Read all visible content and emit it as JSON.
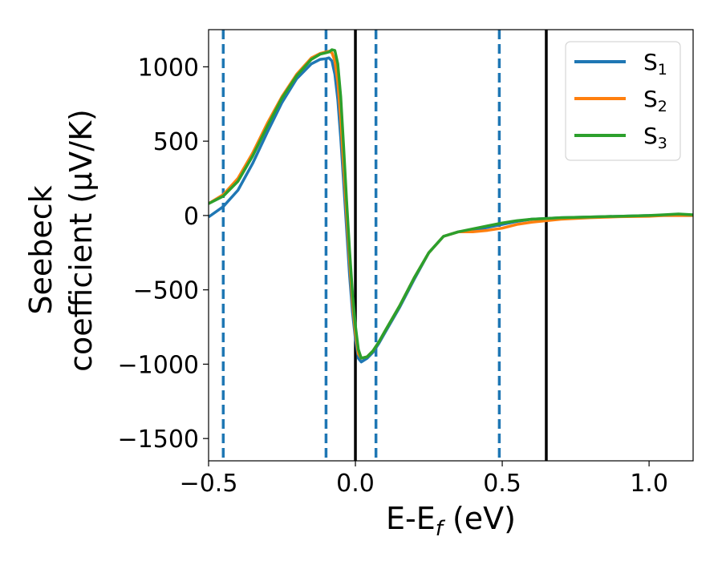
{
  "chart_data": {
    "type": "line",
    "xlabel_main": "E-E",
    "xlabel_sub": "f",
    "xlabel_unit": " (eV)",
    "ylabel_line1": "Seebeck",
    "ylabel_line2": "coefficient  (μV/K)",
    "xlim": [
      -0.5,
      1.15
    ],
    "ylim": [
      -1650,
      1250
    ],
    "xticks": [
      -0.5,
      0.0,
      0.5,
      1.0
    ],
    "xtick_labels": [
      "−0.5",
      "0.0",
      "0.5",
      "1.0"
    ],
    "yticks": [
      -1500,
      -1000,
      -500,
      0,
      500,
      1000
    ],
    "ytick_labels": [
      "−1500",
      "−1000",
      "−500",
      "0",
      "500",
      "1000"
    ],
    "legend_position": "top-right",
    "grid": false,
    "vlines_dashed": {
      "color": "#1f77b4",
      "x": [
        -0.45,
        -0.1,
        0.07,
        0.49
      ]
    },
    "vlines_solid": {
      "color": "#000000",
      "x": [
        0.0,
        0.65
      ]
    },
    "series": [
      {
        "name": "S",
        "sub": "1",
        "color": "#1f77b4",
        "x": [
          -0.5,
          -0.45,
          -0.4,
          -0.35,
          -0.3,
          -0.25,
          -0.2,
          -0.15,
          -0.12,
          -0.1,
          -0.09,
          -0.08,
          -0.07,
          -0.06,
          -0.05,
          -0.04,
          -0.03,
          -0.02,
          -0.01,
          0.0,
          0.01,
          0.02,
          0.04,
          0.06,
          0.08,
          0.1,
          0.15,
          0.2,
          0.25,
          0.3,
          0.35,
          0.4,
          0.45,
          0.5,
          0.55,
          0.6,
          0.65,
          0.7,
          0.8,
          0.9,
          1.0,
          1.05,
          1.1,
          1.15
        ],
        "y": [
          -10,
          60,
          170,
          350,
          560,
          760,
          920,
          1020,
          1050,
          1055,
          1060,
          1040,
          950,
          780,
          520,
          220,
          -90,
          -400,
          -650,
          -830,
          -960,
          -985,
          -960,
          -920,
          -860,
          -790,
          -620,
          -430,
          -250,
          -140,
          -110,
          -100,
          -80,
          -60,
          -40,
          -25,
          -20,
          -15,
          -10,
          -5,
          0,
          0,
          0,
          0
        ]
      },
      {
        "name": "S",
        "sub": "2",
        "color": "#ff7f0e",
        "x": [
          -0.5,
          -0.45,
          -0.4,
          -0.35,
          -0.3,
          -0.25,
          -0.2,
          -0.15,
          -0.12,
          -0.1,
          -0.09,
          -0.08,
          -0.07,
          -0.06,
          -0.05,
          -0.04,
          -0.03,
          -0.02,
          -0.01,
          0.0,
          0.01,
          0.02,
          0.04,
          0.06,
          0.08,
          0.1,
          0.15,
          0.2,
          0.25,
          0.3,
          0.35,
          0.4,
          0.45,
          0.5,
          0.55,
          0.6,
          0.65,
          0.7,
          0.8,
          0.9,
          1.0,
          1.05,
          1.1,
          1.15
        ],
        "y": [
          80,
          140,
          250,
          420,
          620,
          800,
          950,
          1060,
          1090,
          1100,
          1105,
          1095,
          1040,
          900,
          650,
          330,
          10,
          -300,
          -580,
          -790,
          -930,
          -960,
          -950,
          -910,
          -850,
          -780,
          -610,
          -420,
          -250,
          -140,
          -110,
          -110,
          -100,
          -85,
          -60,
          -45,
          -35,
          -25,
          -15,
          -8,
          -5,
          0,
          0,
          0
        ]
      },
      {
        "name": "S",
        "sub": "3",
        "color": "#2ca02c",
        "x": [
          -0.5,
          -0.45,
          -0.4,
          -0.35,
          -0.3,
          -0.25,
          -0.2,
          -0.15,
          -0.12,
          -0.1,
          -0.09,
          -0.08,
          -0.07,
          -0.06,
          -0.05,
          -0.04,
          -0.03,
          -0.02,
          -0.01,
          0.0,
          0.01,
          0.02,
          0.04,
          0.06,
          0.08,
          0.1,
          0.15,
          0.2,
          0.25,
          0.3,
          0.35,
          0.4,
          0.45,
          0.5,
          0.55,
          0.6,
          0.65,
          0.7,
          0.8,
          0.9,
          1.0,
          1.05,
          1.1,
          1.15
        ],
        "y": [
          80,
          130,
          230,
          400,
          600,
          790,
          940,
          1050,
          1085,
          1095,
          1100,
          1115,
          1110,
          1020,
          800,
          460,
          100,
          -230,
          -520,
          -740,
          -900,
          -960,
          -950,
          -910,
          -850,
          -780,
          -610,
          -420,
          -250,
          -140,
          -110,
          -90,
          -70,
          -50,
          -35,
          -25,
          -20,
          -15,
          -10,
          -5,
          0,
          5,
          10,
          5
        ]
      }
    ]
  }
}
